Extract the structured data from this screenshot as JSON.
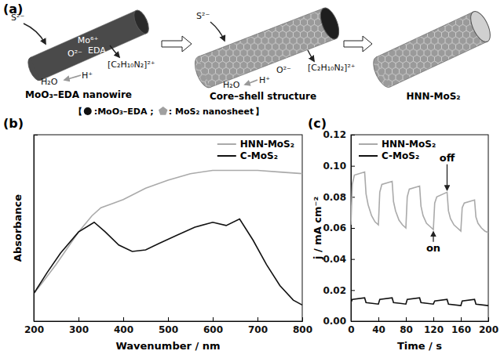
{
  "diagram": {
    "panel_label": "(a)",
    "stages": [
      {
        "caption": "MoO₃–EDA nanowire",
        "ions": [
          "S²⁻",
          "Mo⁶⁺",
          "O²⁻",
          "EDA",
          "[C₂H₁₀N₂]²⁺",
          "H⁺",
          "H₂O"
        ]
      },
      {
        "caption": "Core–shell structure",
        "ions": [
          "S²⁻",
          "[C₂H₁₀N₂]²⁺",
          "O²⁻",
          "H⁺",
          "H₂O"
        ]
      },
      {
        "caption": "HNN-MoS₂",
        "ions": []
      }
    ],
    "legend": {
      "open": "【",
      "items": [
        ":MoO₃–EDA ;",
        ": MoS₂ nanosheet"
      ],
      "close": "】"
    }
  },
  "chart_data": [
    {
      "type": "line",
      "panel_label": "(b)",
      "x_label": "Wavenumber / nm",
      "y_label": "Absorbance",
      "xlim": [
        200,
        800
      ],
      "xticks": [
        200,
        300,
        400,
        500,
        600,
        700,
        800
      ],
      "ylim": [
        0,
        1.15
      ],
      "tick_labels": "x",
      "legend": "upper right",
      "series": [
        {
          "name": "HNN-MoS₂",
          "color": "#aaaaaa",
          "x": [
            200,
            220,
            250,
            280,
            300,
            330,
            350,
            380,
            400,
            450,
            500,
            550,
            600,
            650,
            700,
            750,
            800
          ],
          "values": [
            0.17,
            0.24,
            0.35,
            0.47,
            0.55,
            0.65,
            0.7,
            0.73,
            0.75,
            0.82,
            0.87,
            0.91,
            0.93,
            0.93,
            0.93,
            0.92,
            0.91
          ]
        },
        {
          "name": "C-MoS₂",
          "color": "#111111",
          "x": [
            200,
            230,
            260,
            300,
            335,
            360,
            390,
            420,
            450,
            480,
            520,
            560,
            600,
            630,
            660,
            690,
            720,
            750,
            780,
            800
          ],
          "values": [
            0.17,
            0.3,
            0.42,
            0.55,
            0.61,
            0.55,
            0.47,
            0.43,
            0.44,
            0.48,
            0.53,
            0.58,
            0.61,
            0.59,
            0.63,
            0.5,
            0.35,
            0.22,
            0.13,
            0.1
          ]
        }
      ]
    },
    {
      "type": "line",
      "panel_label": "(c)",
      "x_label": "Time / s",
      "y_label": "j / mA cm⁻²",
      "xlim": [
        0,
        200
      ],
      "xticks": [
        0,
        40,
        80,
        120,
        160,
        200
      ],
      "ylim": [
        0,
        0.12
      ],
      "yticks": [
        {
          "value": 0,
          "label": "0.00"
        },
        {
          "value": 0.02,
          "label": "0.02"
        },
        {
          "value": 0.04,
          "label": "0.04"
        },
        {
          "value": 0.06,
          "label": "0.06"
        },
        {
          "value": 0.08,
          "label": "0.08"
        },
        {
          "value": 0.1,
          "label": "0.10"
        },
        {
          "value": 0.12,
          "label": "0.12"
        }
      ],
      "legend": "upper left",
      "annotations": [
        {
          "text": "on",
          "x": 120,
          "y": 0.045
        },
        {
          "text": "off",
          "x": 140,
          "y": 0.103
        }
      ],
      "series": [
        {
          "name": "HNN-MoS₂",
          "color": "#aaaaaa",
          "x": [
            0,
            2,
            5,
            20,
            22,
            25,
            30,
            35,
            40,
            42,
            45,
            60,
            62,
            65,
            70,
            75,
            80,
            82,
            85,
            100,
            102,
            105,
            110,
            115,
            120,
            122,
            125,
            140,
            142,
            145,
            150,
            155,
            160,
            162,
            165,
            180,
            182,
            185,
            190,
            195,
            200
          ],
          "values": [
            0.062,
            0.088,
            0.094,
            0.096,
            0.082,
            0.075,
            0.068,
            0.064,
            0.062,
            0.083,
            0.088,
            0.09,
            0.077,
            0.071,
            0.065,
            0.062,
            0.06,
            0.08,
            0.085,
            0.087,
            0.074,
            0.068,
            0.063,
            0.061,
            0.059,
            0.076,
            0.08,
            0.083,
            0.071,
            0.066,
            0.062,
            0.06,
            0.058,
            0.073,
            0.076,
            0.078,
            0.067,
            0.063,
            0.06,
            0.058,
            0.057
          ]
        },
        {
          "name": "C-MoS₂",
          "color": "#111111",
          "x": [
            0,
            2,
            20,
            22,
            40,
            42,
            60,
            62,
            80,
            82,
            100,
            102,
            120,
            122,
            140,
            142,
            160,
            162,
            180,
            182,
            200
          ],
          "values": [
            0.012,
            0.014,
            0.015,
            0.012,
            0.011,
            0.014,
            0.015,
            0.012,
            0.011,
            0.014,
            0.015,
            0.012,
            0.011,
            0.013,
            0.014,
            0.011,
            0.01,
            0.013,
            0.014,
            0.011,
            0.01
          ]
        }
      ]
    }
  ]
}
